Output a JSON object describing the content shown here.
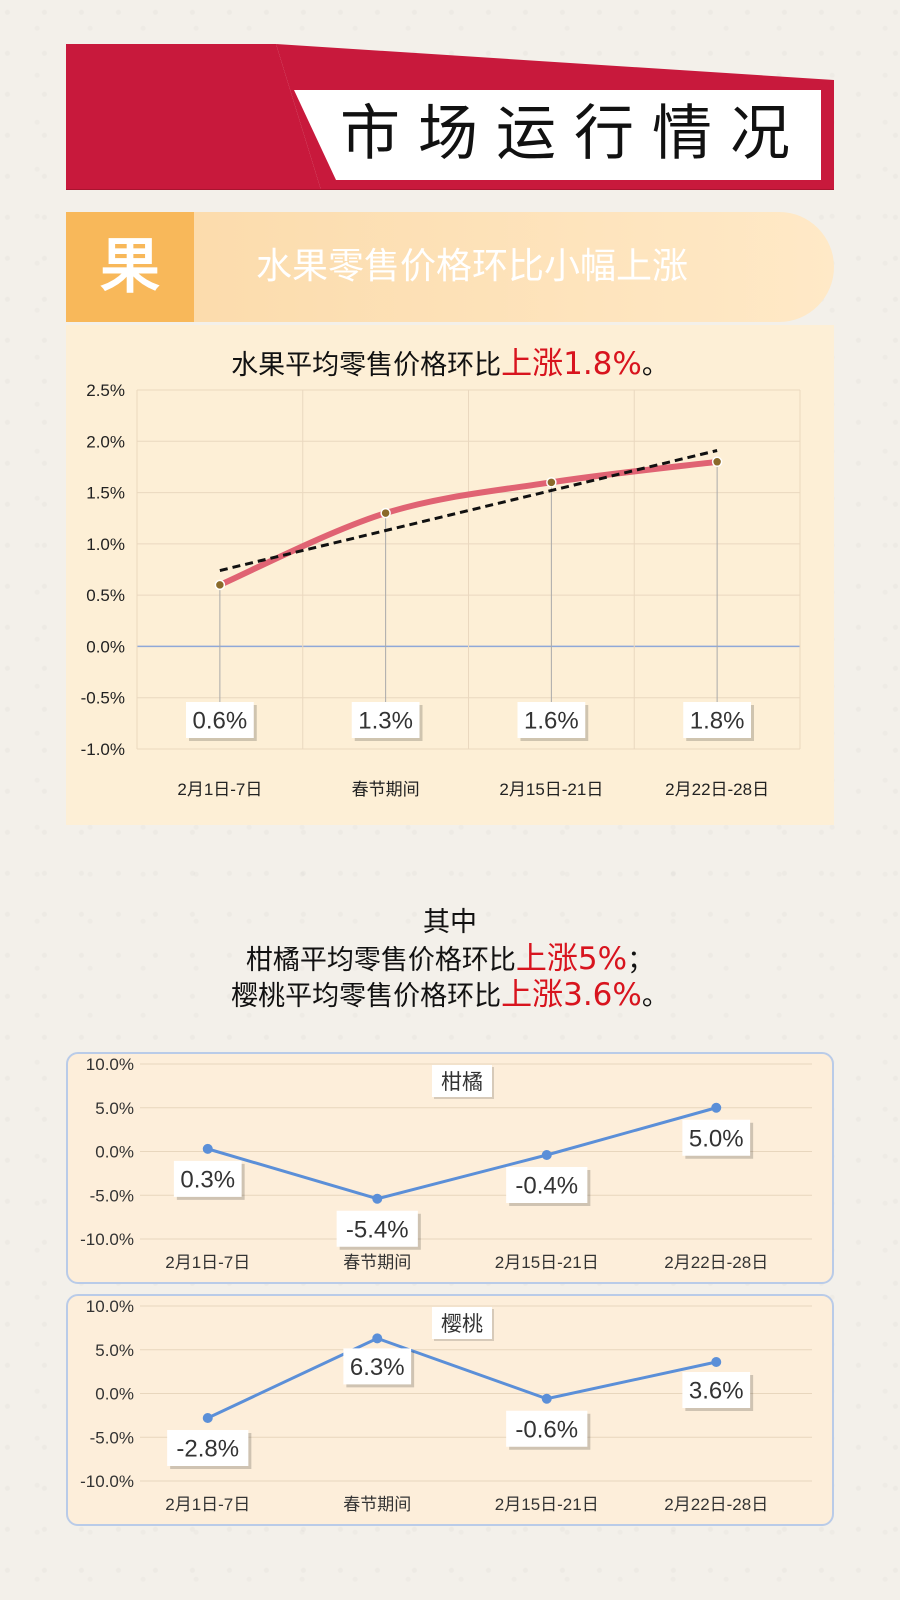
{
  "header": {
    "title": "市场运行情况"
  },
  "section": {
    "badge": "果",
    "title": "水果零售价格环比小幅上涨"
  },
  "summary": {
    "prefix": "水果平均零售价格环比",
    "highlight": "上涨1.8%",
    "suffix": "。"
  },
  "notes": {
    "line1": "其中",
    "line2_prefix": "柑橘平均零售价格环比",
    "line2_highlight": "上涨5%",
    "line2_suffix": "；",
    "line3_prefix": "樱桃平均零售价格环比",
    "line3_highlight": "上涨3.6%",
    "line3_suffix": "。"
  },
  "colors": {
    "accent_red": "#c8193c",
    "highlight_red": "#d8141e",
    "line_pink": "#e06373",
    "line_blue": "#5b8fd8",
    "orange": "#f8b85a"
  },
  "chart_data": [
    {
      "type": "line",
      "title": "",
      "categories": [
        "2月1日-7日",
        "春节期间",
        "2月15日-21日",
        "2月22日-28日"
      ],
      "series": [
        {
          "values": [
            0.6,
            1.3,
            1.6,
            1.8
          ]
        }
      ],
      "data_labels": [
        "0.6%",
        "1.3%",
        "1.6%",
        "1.8%"
      ],
      "trendline": true,
      "ylim": [
        -1.0,
        2.5
      ],
      "yticks": [
        2.5,
        2.0,
        1.5,
        1.0,
        0.5,
        0.0,
        -0.5,
        -1.0
      ],
      "ytick_labels": [
        "2.5%",
        "2.0%",
        "1.5%",
        "1.0%",
        "0.5%",
        "0.0%",
        "-0.5%",
        "-1.0%"
      ],
      "grid": true
    },
    {
      "type": "line",
      "title": "柑橘",
      "categories": [
        "2月1日-7日",
        "春节期间",
        "2月15日-21日",
        "2月22日-28日"
      ],
      "series": [
        {
          "name": "柑橘",
          "values": [
            0.3,
            -5.4,
            -0.4,
            5.0
          ]
        }
      ],
      "data_labels": [
        "0.3%",
        "-5.4%",
        "-0.4%",
        "5.0%"
      ],
      "ylim": [
        -10,
        10
      ],
      "yticks": [
        10,
        5,
        0,
        -5,
        -10
      ],
      "ytick_labels": [
        "10.0%",
        "5.0%",
        "0.0%",
        "-5.0%",
        "-10.0%"
      ],
      "grid": true
    },
    {
      "type": "line",
      "title": "樱桃",
      "categories": [
        "2月1日-7日",
        "春节期间",
        "2月15日-21日",
        "2月22日-28日"
      ],
      "series": [
        {
          "name": "樱桃",
          "values": [
            -2.8,
            6.3,
            -0.6,
            3.6
          ]
        }
      ],
      "data_labels": [
        "-2.8%",
        "6.3%",
        "-0.6%",
        "3.6%"
      ],
      "ylim": [
        -10,
        10
      ],
      "yticks": [
        10,
        5,
        0,
        -5,
        -10
      ],
      "ytick_labels": [
        "10.0%",
        "5.0%",
        "0.0%",
        "-5.0%",
        "-10.0%"
      ],
      "grid": true
    }
  ]
}
